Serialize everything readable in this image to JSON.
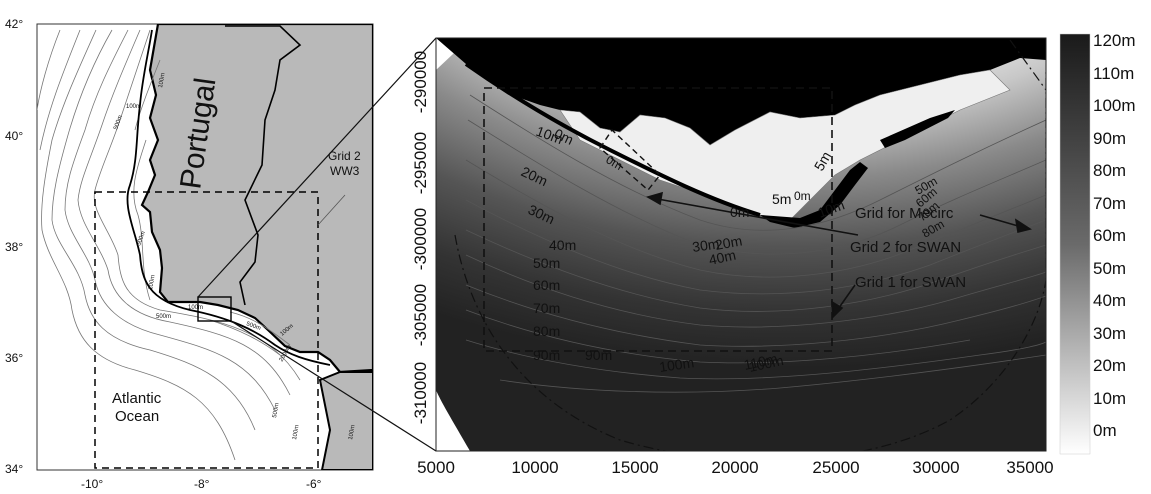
{
  "left_map": {
    "lat_labels": [
      "42°",
      "40°",
      "38°",
      "36°",
      "34°"
    ],
    "lon_labels": [
      "-10°",
      "-8°",
      "-6°"
    ],
    "country_label": "Portugal",
    "ocean_label_line1": "Atlantic",
    "ocean_label_line2": "Ocean",
    "grid_label_line1": "Grid 2",
    "grid_label_line2": "WW3",
    "isobath_labels": [
      "100m",
      "500m",
      "100m",
      "500m",
      "100m",
      "500m",
      "100m",
      "2000m",
      "500m",
      "100m",
      "100m",
      "500m",
      "100m"
    ]
  },
  "right_map": {
    "y_ticks": [
      "-290000",
      "-295000",
      "-300000",
      "-305000",
      "-310000"
    ],
    "x_ticks": [
      "5000",
      "10000",
      "15000",
      "20000",
      "25000",
      "30000",
      "35000"
    ],
    "contour_labels": [
      "0m",
      "10m",
      "20m",
      "30m",
      "40m",
      "50m",
      "60m",
      "70m",
      "80m",
      "90m",
      "90m",
      "100m",
      "110m",
      "100m",
      "30m",
      "20m",
      "40m",
      "0m",
      "5m",
      "5m",
      "10m",
      "50m",
      "60m",
      "70m",
      "80m",
      "0m",
      "0m"
    ],
    "grid_labels": [
      "Grid for Mecirc",
      "Grid 2 for SWAN",
      "Grid 1 for SWAN"
    ]
  },
  "colorbar": {
    "labels": [
      "120m",
      "110m",
      "100m",
      "90m",
      "80m",
      "70m",
      "60m",
      "50m",
      "40m",
      "30m",
      "20m",
      "10m",
      "0m"
    ],
    "color_top": "#1a1a1a",
    "color_bottom": "#ffffff"
  },
  "colors": {
    "land_left": "#b9b9b9",
    "land_right": "#000000",
    "deep_water": "#1f1f1f",
    "shallow_water": "#f2f2f2"
  }
}
